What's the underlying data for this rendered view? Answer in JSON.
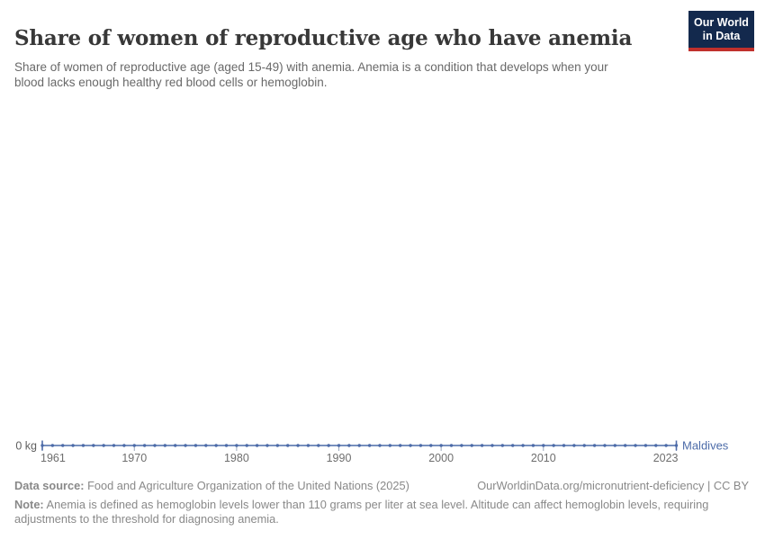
{
  "header": {
    "title": "Share of women of reproductive age who have anemia",
    "subtitle_line1": "Share of women of reproductive age (aged 15-49) with anemia. Anemia is a condition that develops when your",
    "subtitle_line2": "blood lacks enough healthy red blood cells or hemoglobin.",
    "logo": {
      "line1": "Our World",
      "line2": "in Data",
      "bg_color": "#13294d",
      "stripe_color": "#c0302c"
    }
  },
  "chart_data": {
    "type": "line",
    "title": "Share of women of reproductive age who have anemia",
    "entity": "Maldives",
    "line_color": "#4c6ba8",
    "tick_color": "#9aa6ba",
    "axis_label_color": "#6e6e6e",
    "y_axis_labels": [
      "0 kg"
    ],
    "x_ticks": [
      1961,
      1970,
      1980,
      1990,
      2000,
      2010,
      2023
    ],
    "x_range": [
      1961,
      2023
    ],
    "grid": false,
    "legend_position": "right-of-line-end",
    "series": [
      {
        "name": "Maldives",
        "color": "#4c6ba8",
        "years": [
          1961,
          1962,
          1963,
          1964,
          1965,
          1966,
          1967,
          1968,
          1969,
          1970,
          1971,
          1972,
          1973,
          1974,
          1975,
          1976,
          1977,
          1978,
          1979,
          1980,
          1981,
          1982,
          1983,
          1984,
          1985,
          1986,
          1987,
          1988,
          1989,
          1990,
          1991,
          1992,
          1993,
          1994,
          1995,
          1996,
          1997,
          1998,
          1999,
          2000,
          2001,
          2002,
          2003,
          2004,
          2005,
          2006,
          2007,
          2008,
          2009,
          2010,
          2011,
          2012,
          2013,
          2014,
          2015,
          2016,
          2017,
          2018,
          2019,
          2020,
          2021,
          2022,
          2023
        ],
        "values": [
          0,
          0,
          0,
          0,
          0,
          0,
          0,
          0,
          0,
          0,
          0,
          0,
          0,
          0,
          0,
          0,
          0,
          0,
          0,
          0,
          0,
          0,
          0,
          0,
          0,
          0,
          0,
          0,
          0,
          0,
          0,
          0,
          0,
          0,
          0,
          0,
          0,
          0,
          0,
          0,
          0,
          0,
          0,
          0,
          0,
          0,
          0,
          0,
          0,
          0,
          0,
          0,
          0,
          0,
          0,
          0,
          0,
          0,
          0,
          0,
          0,
          0,
          0
        ]
      }
    ]
  },
  "footer": {
    "datasource_label": "Data source:",
    "datasource_text": " Food and Agriculture Organization of the United Nations (2025)",
    "rights": "OurWorldinData.org/micronutrient-deficiency | CC BY",
    "note_label": "Note:",
    "note_line1": " Anemia is defined as hemoglobin levels lower than 110 grams per liter at sea level. Altitude can affect hemoglobin levels, requiring",
    "note_line2": "adjustments to the threshold for diagnosing anemia."
  }
}
